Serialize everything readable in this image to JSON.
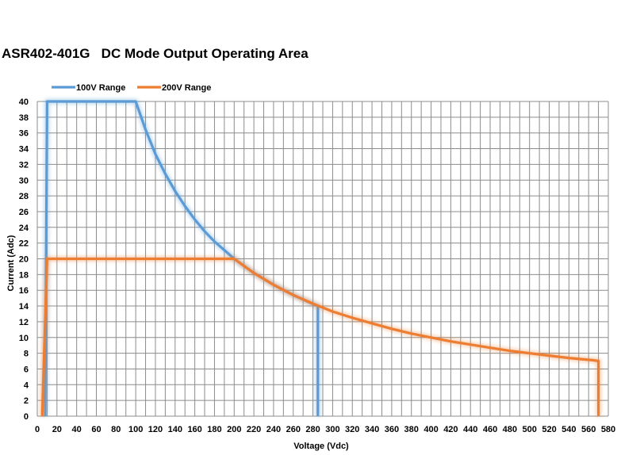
{
  "chart_data": {
    "type": "line",
    "title": "ASR402-401G   DC Mode Output Operating Area",
    "xlabel": "Voltage (Vdc)",
    "ylabel": "Current (Adc)",
    "xlim": [
      0,
      580
    ],
    "ylim": [
      0,
      40
    ],
    "x_ticks": [
      0,
      20,
      40,
      60,
      80,
      100,
      120,
      140,
      160,
      180,
      200,
      220,
      240,
      260,
      280,
      300,
      320,
      340,
      360,
      380,
      400,
      420,
      440,
      460,
      480,
      500,
      520,
      540,
      560,
      580
    ],
    "y_ticks": [
      0,
      2,
      4,
      6,
      8,
      10,
      12,
      14,
      16,
      18,
      20,
      22,
      24,
      26,
      28,
      30,
      32,
      34,
      36,
      38,
      40
    ],
    "grid": true,
    "legend_position": "top-left",
    "series": [
      {
        "name": "100V Range",
        "color": "#5b9bd5",
        "x": [
          8,
          10,
          100,
          110,
          120,
          130,
          140,
          150,
          160,
          170,
          180,
          190,
          200,
          220,
          240,
          260,
          283,
          285,
          285
        ],
        "y": [
          0,
          40,
          40,
          36.4,
          33.3,
          30.8,
          28.6,
          26.7,
          25,
          23.5,
          22.2,
          21.1,
          20,
          18.2,
          16.7,
          15.4,
          14.1,
          14,
          0
        ]
      },
      {
        "name": "200V Range",
        "color": "#ed7d31",
        "x": [
          5,
          10,
          200,
          220,
          240,
          260,
          280,
          300,
          320,
          340,
          360,
          380,
          400,
          420,
          440,
          460,
          480,
          500,
          520,
          540,
          565,
          570,
          570
        ],
        "y": [
          0,
          20,
          20,
          18.2,
          16.7,
          15.4,
          14.3,
          13.3,
          12.5,
          11.8,
          11.1,
          10.5,
          10,
          9.5,
          9.1,
          8.7,
          8.3,
          8,
          7.7,
          7.4,
          7.1,
          7,
          0
        ]
      }
    ]
  }
}
